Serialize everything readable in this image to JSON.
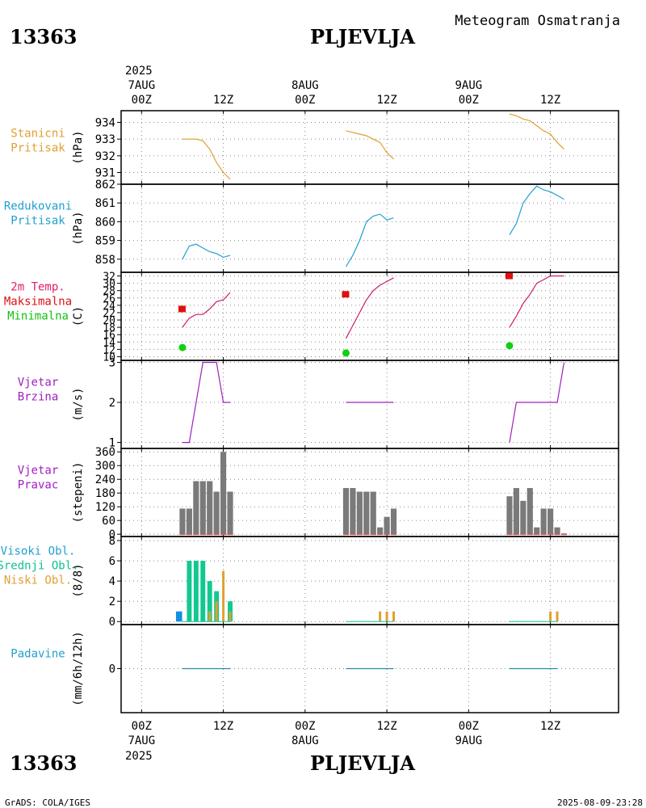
{
  "header": {
    "station_id": "13363",
    "station_name": "PLJEVLJA",
    "title": "Meteogram Osmatranja"
  },
  "footer": {
    "station_id": "13363",
    "station_name": "PLJEVLJA",
    "credit": "GrADS: COLA/IGES",
    "timestamp": "2025-08-09-23:28"
  },
  "time_axis": {
    "top_year": "2025",
    "bottom_year": "2025",
    "ticks": [
      {
        "hour": 0,
        "label": "00Z",
        "date": "7AUG"
      },
      {
        "hour": 12,
        "label": "12Z",
        "date": ""
      },
      {
        "hour": 24,
        "label": "00Z",
        "date": "8AUG"
      },
      {
        "hour": 36,
        "label": "12Z",
        "date": ""
      },
      {
        "hour": 48,
        "label": "00Z",
        "date": "9AUG"
      },
      {
        "hour": 60,
        "label": "12Z",
        "date": ""
      }
    ],
    "range_hours": [
      -3,
      70
    ]
  },
  "chart_data": [
    {
      "type": "line",
      "id": "station_pressure",
      "labels": [
        "Stanicni",
        "Pritisak"
      ],
      "label_colors": [
        "#e0a030",
        "#e0a030"
      ],
      "ylabel": "(hPa)",
      "ylim": [
        930.3,
        934.7
      ],
      "yticks": [
        931,
        932,
        933,
        934
      ],
      "series": [
        {
          "name": "Stanicni Pritisak",
          "color": "#e0a030",
          "segments": [
            {
              "x": [
                6,
                8,
                9,
                10,
                11,
                12,
                13
              ],
              "y": [
                933.0,
                933.0,
                932.9,
                932.4,
                931.6,
                931.0,
                930.6
              ]
            },
            {
              "x": [
                30,
                31,
                32,
                33,
                34,
                35,
                36,
                37
              ],
              "y": [
                933.5,
                933.4,
                933.3,
                933.2,
                933.0,
                932.8,
                932.2,
                931.8
              ]
            },
            {
              "x": [
                54,
                55,
                56,
                57,
                58,
                59,
                60,
                61,
                62
              ],
              "y": [
                934.5,
                934.4,
                934.2,
                934.1,
                933.8,
                933.5,
                933.3,
                932.8,
                932.4
              ]
            }
          ]
        }
      ]
    },
    {
      "type": "line",
      "id": "reduced_pressure",
      "labels": [
        "Redukovani",
        "Pritisak"
      ],
      "label_colors": [
        "#20a0d0",
        "#20a0d0"
      ],
      "ylabel": "(hPa)",
      "ylim": [
        857.3,
        862.0
      ],
      "yticks": [
        858,
        859,
        860,
        861,
        862
      ],
      "series": [
        {
          "name": "Redukovani Pritisak",
          "color": "#20a0d0",
          "segments": [
            {
              "x": [
                6,
                7,
                8,
                9,
                10,
                11,
                12,
                13
              ],
              "y": [
                858.0,
                858.7,
                858.8,
                858.6,
                858.4,
                858.3,
                858.1,
                858.2
              ]
            },
            {
              "x": [
                30,
                31,
                32,
                33,
                34,
                35,
                36,
                37
              ],
              "y": [
                857.6,
                858.2,
                859.0,
                860.0,
                860.3,
                860.4,
                860.1,
                860.2
              ]
            },
            {
              "x": [
                54,
                55,
                56,
                57,
                58,
                59,
                60,
                61,
                62
              ],
              "y": [
                859.3,
                859.9,
                861.0,
                861.5,
                861.9,
                861.7,
                861.6,
                861.4,
                861.2
              ]
            }
          ]
        }
      ]
    },
    {
      "type": "line",
      "id": "temperature",
      "labels": [
        "2m Temp.",
        "Maksimalna",
        "Minimalna"
      ],
      "label_colors": [
        "#e0206a",
        "#e01010",
        "#10c010"
      ],
      "ylabel": "(C)",
      "ylim": [
        9,
        33
      ],
      "yticks": [
        10,
        12,
        14,
        16,
        18,
        20,
        22,
        24,
        26,
        28,
        30,
        32
      ],
      "series": [
        {
          "name": "2m Temp.",
          "color": "#d01870",
          "segments": [
            {
              "x": [
                6,
                7,
                8,
                9,
                10,
                11,
                12,
                13
              ],
              "y": [
                18.0,
                20.5,
                21.5,
                21.5,
                23.0,
                25.0,
                25.5,
                27.5
              ]
            },
            {
              "x": [
                30,
                31,
                32,
                33,
                34,
                35,
                36,
                37
              ],
              "y": [
                15.0,
                18.5,
                22.0,
                25.5,
                28.0,
                29.5,
                30.5,
                31.5
              ]
            },
            {
              "x": [
                54,
                55,
                56,
                57,
                58,
                59,
                60,
                61,
                62
              ],
              "y": [
                18.0,
                21.0,
                24.5,
                27.0,
                30.0,
                31.0,
                32.0,
                32.0,
                32.0
              ]
            }
          ]
        }
      ],
      "maxima": [
        {
          "x": 6,
          "y": 23.0
        },
        {
          "x": 30,
          "y": 27.0
        },
        {
          "x": 54,
          "y": 32.0
        }
      ],
      "minima": [
        {
          "x": 6,
          "y": 12.5
        },
        {
          "x": 30,
          "y": 11.0
        },
        {
          "x": 54,
          "y": 13.0
        }
      ]
    },
    {
      "type": "line",
      "id": "wind_speed",
      "labels": [
        "Vjetar",
        "Brzina"
      ],
      "label_colors": [
        "#a020c0",
        "#a020c0"
      ],
      "ylabel": "(m/s)",
      "ylim": [
        0.85,
        3.05
      ],
      "yticks": [
        1,
        2,
        3
      ],
      "series": [
        {
          "name": "Vjetar Brzina",
          "color": "#a020c0",
          "segments": [
            {
              "x": [
                6,
                7,
                9,
                10,
                11,
                12,
                13
              ],
              "y": [
                1,
                1,
                3,
                3,
                3,
                2,
                2
              ]
            },
            {
              "x": [
                30,
                37
              ],
              "y": [
                2,
                2
              ]
            },
            {
              "x": [
                54,
                55,
                60,
                61,
                62
              ],
              "y": [
                1,
                2,
                2,
                2,
                3
              ]
            }
          ]
        }
      ]
    },
    {
      "type": "bar",
      "id": "wind_direction",
      "labels": [
        "Vjetar",
        "Pravac"
      ],
      "label_colors": [
        "#a020c0",
        "#a020c0"
      ],
      "ylabel": "(stepeni)",
      "ylim": [
        -10,
        375
      ],
      "yticks": [
        0,
        60,
        120,
        180,
        240,
        300,
        360
      ],
      "bar_color": "#7a7a7a",
      "baseline_color": "#c06060",
      "x": [
        6,
        7,
        8,
        9,
        10,
        11,
        12,
        13,
        30,
        31,
        32,
        33,
        34,
        35,
        36,
        37,
        54,
        55,
        56,
        57,
        58,
        59,
        60,
        61,
        62
      ],
      "values": [
        112,
        112,
        232,
        232,
        232,
        186,
        360,
        186,
        202,
        202,
        186,
        186,
        186,
        30,
        76,
        112,
        166,
        202,
        146,
        202,
        30,
        112,
        112,
        30,
        0
      ]
    },
    {
      "type": "bar",
      "id": "cloud_cover",
      "labels": [
        "Visoki Obl.",
        "Srednji Obl.",
        "Niski Obl."
      ],
      "label_colors": [
        "#20a0d0",
        "#10c090",
        "#e0a030"
      ],
      "ylabel": "(8/8)",
      "ylim": [
        -0.3,
        8.4
      ],
      "yticks": [
        0,
        2,
        4,
        6,
        8
      ],
      "series": [
        {
          "name": "Visoki Obl.",
          "color": "#1090e0",
          "offset": -0.5,
          "width": 0.9,
          "x": [
            6
          ],
          "values": [
            1
          ]
        },
        {
          "name": "Srednji Obl.",
          "color": "#10c890",
          "offset": 0,
          "width": 0.7,
          "x": [
            7,
            8,
            9,
            10,
            11,
            12,
            13
          ],
          "values": [
            6,
            6,
            6,
            4,
            3,
            0,
            2
          ]
        },
        {
          "name": "Niski Obl.",
          "color": "#e0a030",
          "offset": 0,
          "width": 0.35,
          "x": [
            10,
            11,
            12,
            13,
            35,
            36,
            37,
            60,
            61
          ],
          "values": [
            1,
            2,
            5,
            1,
            1,
            1,
            1,
            1,
            1
          ]
        }
      ]
    },
    {
      "type": "line",
      "id": "precipitation",
      "labels": [
        "Padavine"
      ],
      "label_colors": [
        "#20a0d0"
      ],
      "ylabel": "(mm/6h/12h)",
      "ylim": [
        -3,
        3
      ],
      "yticks": [
        0
      ],
      "series": [
        {
          "name": "Padavine",
          "color": "#2090b0",
          "segments": [
            {
              "x": [
                6,
                13
              ],
              "y": [
                0,
                0
              ]
            },
            {
              "x": [
                30,
                37
              ],
              "y": [
                0,
                0
              ]
            },
            {
              "x": [
                54,
                61
              ],
              "y": [
                0,
                0
              ]
            }
          ]
        }
      ]
    }
  ]
}
